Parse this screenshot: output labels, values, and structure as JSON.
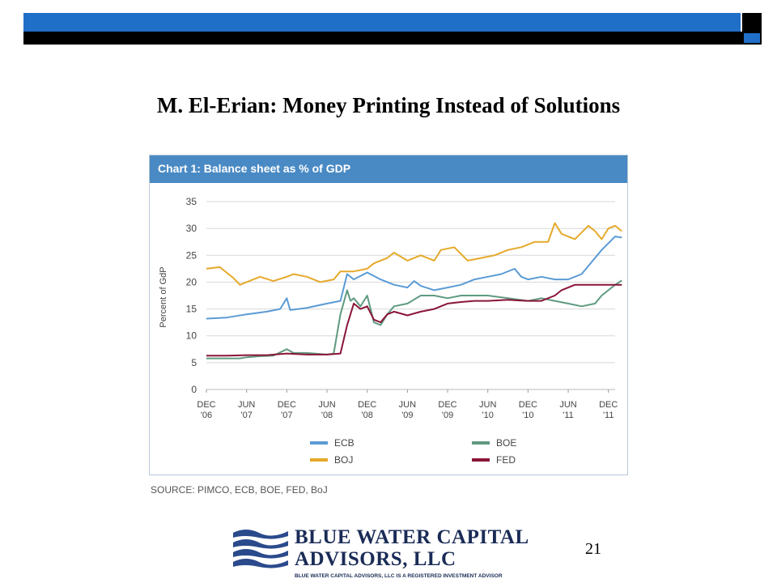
{
  "slide": {
    "title": "M. El-Erian: Money Printing Instead of Solutions",
    "page_number": "21",
    "brand_color": "#1f6fc8"
  },
  "chart_title": "Chart 1: Balance sheet as % of GDP",
  "source": "SOURCE: PIMCO, ECB, BOE, FED, BoJ",
  "logo": {
    "name_line1": "BLUE WATER CAPITAL",
    "name_line2": "ADVISORS, LLC",
    "tagline": "BLUE WATER CAPITAL ADVISORS, LLC IS A REGISTERED INVESTMENT ADVISOR"
  },
  "chart_data": {
    "type": "line",
    "title": "Chart 1: Balance sheet as % of GDP",
    "ylabel": "Percent of GdP",
    "xlabel": "",
    "ylim": [
      0,
      35
    ],
    "yticks": [
      0,
      5,
      10,
      15,
      20,
      25,
      30,
      35
    ],
    "xlim": [
      0,
      61
    ],
    "xticks": [
      {
        "x": 0,
        "line1": "DEC",
        "line2": "'06"
      },
      {
        "x": 6,
        "line1": "JUN",
        "line2": "'07"
      },
      {
        "x": 12,
        "line1": "DEC",
        "line2": "'07"
      },
      {
        "x": 18,
        "line1": "JUN",
        "line2": "'08"
      },
      {
        "x": 24,
        "line1": "DEC",
        "line2": "'08"
      },
      {
        "x": 30,
        "line1": "JUN",
        "line2": "'09"
      },
      {
        "x": 36,
        "line1": "DEC",
        "line2": "'09"
      },
      {
        "x": 42,
        "line1": "JUN",
        "line2": "'10"
      },
      {
        "x": 48,
        "line1": "DEC",
        "line2": "'10"
      },
      {
        "x": 54,
        "line1": "JUN",
        "line2": "'11"
      },
      {
        "x": 60,
        "line1": "DEC",
        "line2": "'11"
      }
    ],
    "grid": true,
    "legend_position": "bottom",
    "series": [
      {
        "name": "ECB",
        "color": "#5b9bd5",
        "points": [
          [
            0,
            13.2
          ],
          [
            3,
            13.4
          ],
          [
            6,
            14.0
          ],
          [
            9,
            14.5
          ],
          [
            11,
            15.0
          ],
          [
            12,
            17.0
          ],
          [
            12.5,
            14.8
          ],
          [
            15,
            15.2
          ],
          [
            18,
            16.0
          ],
          [
            20,
            16.5
          ],
          [
            21,
            21.5
          ],
          [
            22,
            20.5
          ],
          [
            24,
            21.8
          ],
          [
            26,
            20.5
          ],
          [
            28,
            19.5
          ],
          [
            30,
            19.0
          ],
          [
            31,
            20.2
          ],
          [
            32,
            19.3
          ],
          [
            34,
            18.5
          ],
          [
            36,
            19.0
          ],
          [
            38,
            19.5
          ],
          [
            40,
            20.5
          ],
          [
            42,
            21.0
          ],
          [
            44,
            21.5
          ],
          [
            46,
            22.5
          ],
          [
            47,
            21.0
          ],
          [
            48,
            20.5
          ],
          [
            50,
            21.0
          ],
          [
            52,
            20.5
          ],
          [
            54,
            20.5
          ],
          [
            56,
            21.5
          ],
          [
            57,
            23.0
          ],
          [
            59,
            26.0
          ],
          [
            61,
            28.5
          ],
          [
            62,
            28.3
          ]
        ]
      },
      {
        "name": "BOJ",
        "color": "#e5a92a",
        "points": [
          [
            0,
            22.5
          ],
          [
            2,
            22.8
          ],
          [
            4,
            20.8
          ],
          [
            5,
            19.5
          ],
          [
            6,
            20.0
          ],
          [
            8,
            21.0
          ],
          [
            10,
            20.2
          ],
          [
            12,
            21.0
          ],
          [
            13,
            21.5
          ],
          [
            15,
            21.0
          ],
          [
            17,
            20.0
          ],
          [
            19,
            20.5
          ],
          [
            20,
            22.0
          ],
          [
            22,
            22.0
          ],
          [
            24,
            22.5
          ],
          [
            25,
            23.5
          ],
          [
            27,
            24.5
          ],
          [
            28,
            25.5
          ],
          [
            30,
            24.0
          ],
          [
            32,
            25.0
          ],
          [
            34,
            24.0
          ],
          [
            35,
            26.0
          ],
          [
            37,
            26.5
          ],
          [
            39,
            24.0
          ],
          [
            41,
            24.5
          ],
          [
            43,
            25.0
          ],
          [
            45,
            26.0
          ],
          [
            47,
            26.5
          ],
          [
            49,
            27.5
          ],
          [
            51,
            27.5
          ],
          [
            52,
            31.0
          ],
          [
            53,
            29.0
          ],
          [
            55,
            28.0
          ],
          [
            57,
            30.5
          ],
          [
            58,
            29.5
          ],
          [
            59,
            28.0
          ],
          [
            60,
            30.0
          ],
          [
            61,
            30.5
          ],
          [
            62,
            29.5
          ]
        ]
      },
      {
        "name": "BOE",
        "color": "#5f9a80",
        "points": [
          [
            0,
            5.8
          ],
          [
            3,
            5.8
          ],
          [
            5,
            5.8
          ],
          [
            6,
            6.0
          ],
          [
            8,
            6.2
          ],
          [
            10,
            6.3
          ],
          [
            12,
            7.5
          ],
          [
            13,
            6.8
          ],
          [
            15,
            6.8
          ],
          [
            18,
            6.5
          ],
          [
            19,
            6.7
          ],
          [
            20,
            14.0
          ],
          [
            21,
            18.5
          ],
          [
            21.5,
            16.5
          ],
          [
            22,
            17.0
          ],
          [
            23,
            15.5
          ],
          [
            24,
            17.5
          ],
          [
            25,
            12.5
          ],
          [
            26,
            12.0
          ],
          [
            27,
            14.0
          ],
          [
            28,
            15.5
          ],
          [
            30,
            16.0
          ],
          [
            32,
            17.5
          ],
          [
            34,
            17.5
          ],
          [
            36,
            17.0
          ],
          [
            38,
            17.5
          ],
          [
            40,
            17.5
          ],
          [
            42,
            17.5
          ],
          [
            45,
            17.0
          ],
          [
            48,
            16.5
          ],
          [
            50,
            17.0
          ],
          [
            52,
            16.5
          ],
          [
            54,
            16.0
          ],
          [
            56,
            15.5
          ],
          [
            58,
            16.0
          ],
          [
            59,
            17.5
          ],
          [
            60,
            18.5
          ],
          [
            61,
            19.5
          ],
          [
            62,
            20.3
          ]
        ]
      },
      {
        "name": "FED",
        "color": "#8a1538",
        "points": [
          [
            0,
            6.3
          ],
          [
            3,
            6.3
          ],
          [
            6,
            6.4
          ],
          [
            9,
            6.4
          ],
          [
            12,
            6.7
          ],
          [
            15,
            6.5
          ],
          [
            18,
            6.5
          ],
          [
            20,
            6.7
          ],
          [
            21,
            12.0
          ],
          [
            22,
            16.0
          ],
          [
            23,
            15.0
          ],
          [
            24,
            15.5
          ],
          [
            25,
            13.0
          ],
          [
            26,
            12.5
          ],
          [
            27,
            14.0
          ],
          [
            28,
            14.5
          ],
          [
            30,
            13.8
          ],
          [
            32,
            14.5
          ],
          [
            34,
            15.0
          ],
          [
            36,
            16.0
          ],
          [
            38,
            16.3
          ],
          [
            40,
            16.5
          ],
          [
            42,
            16.5
          ],
          [
            45,
            16.7
          ],
          [
            48,
            16.5
          ],
          [
            50,
            16.5
          ],
          [
            52,
            17.5
          ],
          [
            53,
            18.5
          ],
          [
            55,
            19.5
          ],
          [
            57,
            19.5
          ],
          [
            59,
            19.5
          ],
          [
            61,
            19.5
          ],
          [
            62,
            19.5
          ]
        ]
      }
    ]
  }
}
